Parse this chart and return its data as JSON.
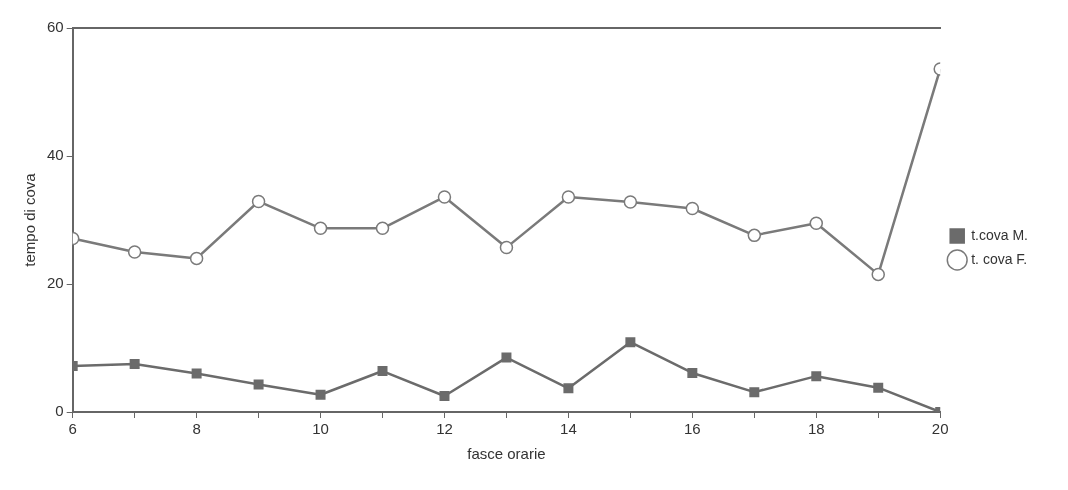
{
  "chart_data": {
    "type": "line",
    "xlabel": "fasce orarie",
    "ylabel": "tempo di cova",
    "x": [
      6,
      7,
      8,
      9,
      10,
      11,
      12,
      13,
      14,
      15,
      16,
      17,
      18,
      19,
      20
    ],
    "series": [
      {
        "name": "t.cova M.",
        "color": "#6b6b6b",
        "marker": "square",
        "values": [
          7.2,
          7.5,
          6.0,
          4.3,
          2.7,
          6.4,
          2.5,
          8.5,
          3.7,
          10.9,
          6.1,
          3.1,
          5.6,
          3.8,
          0
        ]
      },
      {
        "name": "t. cova F.",
        "color": "#7a7a7a",
        "marker": "circle",
        "values": [
          27.1,
          25.0,
          24.0,
          32.9,
          28.7,
          28.7,
          33.6,
          25.7,
          33.6,
          32.8,
          31.8,
          27.6,
          29.5,
          21.5,
          53.6
        ]
      }
    ],
    "xlim": [
      6,
      20
    ],
    "xticks": [
      6,
      {
        "value": 7,
        "label": null
      },
      8,
      {
        "value": 9,
        "label": null
      },
      10,
      {
        "value": 11,
        "label": null
      },
      12,
      {
        "value": 13,
        "label": null
      },
      14,
      {
        "value": 15,
        "label": null
      },
      16,
      {
        "value": 17,
        "label": null
      },
      18,
      {
        "value": 19,
        "label": null
      },
      20
    ],
    "ylim": [
      0,
      60
    ],
    "yticks": [
      0,
      20,
      40,
      60
    ],
    "grid": false,
    "legend": "right",
    "line_style": "solid"
  }
}
